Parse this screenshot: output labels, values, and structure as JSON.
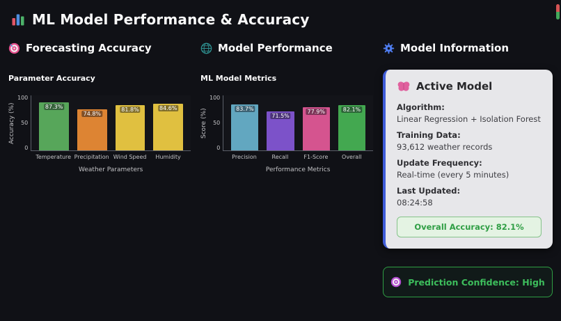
{
  "app": {
    "title": "ML Model Performance & Accuracy",
    "icon": "bar-chart-icon"
  },
  "sections": [
    {
      "title": "Forecasting Accuracy",
      "icon": "target-icon"
    },
    {
      "title": "Model Performance",
      "icon": "globe-icon"
    },
    {
      "title": "Model Information",
      "icon": "gear-icon"
    }
  ],
  "chart_data": [
    {
      "type": "bar",
      "title": "Parameter Accuracy",
      "categories": [
        "Temperature",
        "Precipitation",
        "Wind Speed",
        "Humidity"
      ],
      "values": [
        87.3,
        74.8,
        81.8,
        84.6
      ],
      "labels": [
        "87.3%",
        "74.8%",
        "81.8%",
        "84.6%"
      ],
      "colors": [
        "#57a65a",
        "#dd8433",
        "#e0c040",
        "#e0c040"
      ],
      "xlabel": "Weather Parameters",
      "ylabel": "Accuracy (%)",
      "ylim": [
        0,
        100
      ],
      "yticks": [
        0,
        50,
        100
      ],
      "grid": false,
      "legend": "none"
    },
    {
      "type": "bar",
      "title": "ML Model Metrics",
      "categories": [
        "Precision",
        "Recall",
        "F1-Score",
        "Overall"
      ],
      "values": [
        83.7,
        71.5,
        77.9,
        82.1
      ],
      "labels": [
        "83.7%",
        "71.5%",
        "77.9%",
        "82.1%"
      ],
      "colors": [
        "#62a7c0",
        "#7c52c9",
        "#d5548f",
        "#43a850"
      ],
      "xlabel": "Performance Metrics",
      "ylabel": "Score (%)",
      "ylim": [
        0,
        100
      ],
      "yticks": [
        0,
        50,
        100
      ],
      "grid": false,
      "legend": "none"
    }
  ],
  "model_info": {
    "icon": "brain-icon",
    "card_title": "Active Model",
    "fields": [
      {
        "label": "Algorithm:",
        "value": "Linear Regression + Isolation Forest"
      },
      {
        "label": "Training Data:",
        "value": "93,612 weather records"
      },
      {
        "label": "Update Frequency:",
        "value": "Real-time (every 5 minutes)"
      },
      {
        "label": "Last Updated:",
        "value": "08:24:58"
      }
    ],
    "overall_accuracy_label": "Overall Accuracy: 82.1%"
  },
  "confidence": {
    "icon": "target-icon",
    "label": "Prediction Confidence: High"
  },
  "colors": {
    "background": "#101116",
    "card_background": "#e7e7ea",
    "card_accent_blue": "#3f5cd8",
    "success_green": "#2f9e44",
    "confidence_text": "#3dbd5c"
  }
}
